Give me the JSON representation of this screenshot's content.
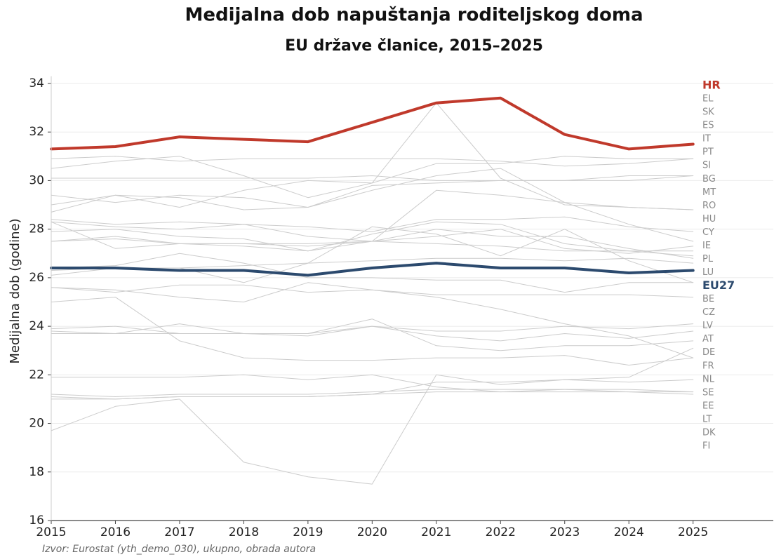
{
  "chart_data": {
    "type": "line",
    "title": "Medijalna dob napuštanja roditeljskog doma",
    "subtitle": "EU države članice, 2015–2025",
    "ylabel": "Medijalna dob (godine)",
    "source": "Izvor: Eurostat (yth_demo_030), ukupno, obrada autora",
    "x": [
      2015,
      2016,
      2017,
      2018,
      2019,
      2020,
      2021,
      2022,
      2023,
      2024,
      2025
    ],
    "xlim": [
      2015,
      2026.25
    ],
    "xticks": [
      2015,
      2016,
      2017,
      2018,
      2019,
      2020,
      2021,
      2022,
      2023,
      2024,
      2025
    ],
    "ylim": [
      16,
      34.3
    ],
    "yticks": [
      16,
      18,
      20,
      22,
      24,
      26,
      28,
      30,
      32,
      34
    ],
    "grid": true,
    "series": [
      {
        "name": "HR",
        "color": "#c0392b",
        "bold": true,
        "values": [
          31.3,
          31.4,
          31.8,
          31.7,
          31.6,
          32.4,
          33.2,
          33.4,
          31.9,
          31.3,
          31.5
        ]
      },
      {
        "name": "EL",
        "color": "#cccccc",
        "values": [
          30.9,
          31.0,
          30.8,
          30.9,
          30.9,
          30.9,
          30.9,
          30.8,
          30.6,
          30.7,
          30.9
        ]
      },
      {
        "name": "SK",
        "color": "#cccccc",
        "values": [
          30.5,
          30.8,
          31.0,
          30.2,
          29.3,
          29.9,
          30.7,
          30.7,
          31.0,
          30.9,
          30.9
        ]
      },
      {
        "name": "ES",
        "color": "#cccccc",
        "values": [
          29.4,
          29.1,
          29.4,
          29.3,
          28.9,
          29.8,
          29.9,
          30.0,
          30.0,
          30.2,
          30.2
        ]
      },
      {
        "name": "IT",
        "color": "#cccccc",
        "values": [
          30.1,
          30.1,
          30.1,
          30.1,
          30.1,
          30.2,
          30.0,
          30.0,
          30.0,
          30.0,
          30.2
        ]
      },
      {
        "name": "PT",
        "color": "#cccccc",
        "values": [
          28.7,
          29.4,
          28.9,
          29.6,
          30.0,
          29.9,
          33.2,
          30.1,
          29.0,
          28.9,
          28.8
        ]
      },
      {
        "name": "SI",
        "color": "#cccccc",
        "values": [
          29.0,
          29.4,
          29.3,
          28.8,
          28.9,
          29.6,
          30.2,
          30.5,
          29.1,
          28.9,
          28.8
        ]
      },
      {
        "name": "BG",
        "color": "#cccccc",
        "values": [
          28.4,
          28.2,
          28.3,
          28.2,
          28.1,
          27.9,
          28.4,
          28.4,
          28.5,
          28.1,
          27.9
        ]
      },
      {
        "name": "MT",
        "color": "#cccccc",
        "values": [
          28.3,
          27.2,
          27.4,
          27.4,
          27.4,
          27.5,
          29.6,
          29.4,
          29.1,
          28.2,
          27.5
        ]
      },
      {
        "name": "RO",
        "color": "#cccccc",
        "values": [
          27.5,
          27.7,
          27.4,
          27.4,
          27.3,
          27.5,
          27.7,
          28.0,
          27.2,
          27.0,
          27.3
        ]
      },
      {
        "name": "HU",
        "color": "#cccccc",
        "values": [
          27.9,
          28.0,
          27.7,
          27.6,
          27.1,
          27.8,
          28.3,
          28.2,
          27.4,
          27.1,
          27.1
        ]
      },
      {
        "name": "CY",
        "color": "#cccccc",
        "values": [
          27.5,
          27.6,
          27.4,
          27.3,
          27.1,
          27.5,
          27.4,
          27.3,
          27.1,
          27.1,
          26.9
        ]
      },
      {
        "name": "IE",
        "color": "#cccccc",
        "values": [
          28.3,
          28.1,
          28.0,
          28.2,
          27.7,
          27.5,
          28.0,
          27.7,
          27.7,
          27.2,
          26.8
        ]
      },
      {
        "name": "PL",
        "color": "#cccccc",
        "values": [
          26.1,
          26.4,
          26.4,
          26.5,
          26.6,
          26.7,
          26.8,
          26.8,
          26.7,
          26.8,
          26.6
        ]
      },
      {
        "name": "LU",
        "color": "#cccccc",
        "values": [
          26.3,
          26.4,
          26.4,
          25.8,
          26.6,
          28.1,
          27.8,
          26.9,
          28.0,
          26.7,
          25.8
        ]
      },
      {
        "name": "EU27",
        "color": "#2c4a6e",
        "bold": true,
        "values": [
          26.4,
          26.4,
          26.3,
          26.3,
          26.1,
          26.4,
          26.6,
          26.4,
          26.4,
          26.2,
          26.3
        ]
      },
      {
        "name": "BE",
        "color": "#cccccc",
        "values": [
          26.4,
          26.5,
          27.0,
          26.6,
          26.0,
          26.0,
          25.9,
          25.9,
          25.4,
          25.8,
          25.8
        ]
      },
      {
        "name": "CZ",
        "color": "#cccccc",
        "values": [
          25.6,
          25.4,
          25.7,
          25.7,
          25.4,
          25.5,
          25.3,
          25.3,
          25.3,
          25.3,
          25.2
        ]
      },
      {
        "name": "LV",
        "color": "#cccccc",
        "values": [
          23.9,
          24.0,
          23.7,
          23.7,
          23.7,
          24.0,
          23.8,
          23.8,
          24.0,
          23.9,
          24.1
        ]
      },
      {
        "name": "AT",
        "color": "#cccccc",
        "values": [
          23.8,
          23.7,
          24.1,
          23.7,
          23.6,
          24.0,
          23.6,
          23.4,
          23.7,
          23.5,
          23.8
        ]
      },
      {
        "name": "DE",
        "color": "#cccccc",
        "values": [
          23.7,
          23.7,
          23.7,
          23.7,
          23.7,
          24.3,
          23.2,
          23.0,
          23.2,
          23.2,
          23.4
        ]
      },
      {
        "name": "FR",
        "color": "#cccccc",
        "values": [
          19.7,
          20.7,
          21.0,
          18.4,
          17.8,
          17.5,
          22.0,
          21.6,
          21.8,
          21.9,
          23.1
        ]
      },
      {
        "name": "NL",
        "color": "#cccccc",
        "values": [
          25.0,
          25.2,
          23.4,
          22.7,
          22.6,
          22.6,
          22.7,
          22.7,
          22.8,
          22.4,
          22.7
        ]
      },
      {
        "name": "SE",
        "color": "#cccccc",
        "values": [
          25.6,
          25.5,
          25.2,
          25.0,
          25.8,
          25.5,
          25.2,
          24.7,
          24.1,
          23.6,
          22.7
        ]
      },
      {
        "name": "EE",
        "color": "#cccccc",
        "values": [
          21.1,
          21.0,
          21.1,
          21.1,
          21.1,
          21.2,
          21.7,
          21.7,
          21.8,
          21.7,
          21.8
        ]
      },
      {
        "name": "LT",
        "color": "#cccccc",
        "values": [
          21.9,
          21.9,
          21.9,
          22.0,
          21.8,
          22.0,
          21.5,
          21.3,
          21.4,
          21.4,
          21.3
        ]
      },
      {
        "name": "DK",
        "color": "#cccccc",
        "values": [
          21.2,
          21.1,
          21.2,
          21.2,
          21.2,
          21.3,
          21.4,
          21.4,
          21.4,
          21.3,
          21.3
        ]
      },
      {
        "name": "FI",
        "color": "#cccccc",
        "values": [
          21.0,
          21.0,
          21.1,
          21.1,
          21.1,
          21.2,
          21.3,
          21.3,
          21.3,
          21.3,
          21.2
        ]
      }
    ]
  }
}
